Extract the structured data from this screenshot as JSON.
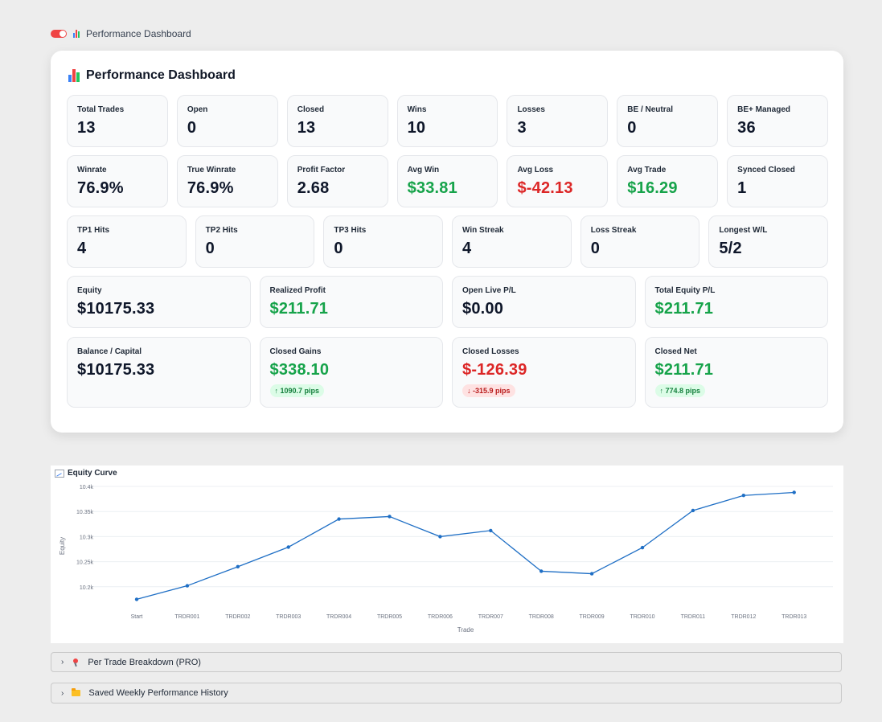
{
  "header": {
    "toggle_label": "Performance Dashboard"
  },
  "panel": {
    "title": "Performance Dashboard"
  },
  "colors": {
    "green": "#16a34a",
    "red": "#dc2626",
    "line": "#1f6fc5"
  },
  "rows": [
    [
      {
        "label": "Total Trades",
        "value": "13",
        "color": ""
      },
      {
        "label": "Open",
        "value": "0",
        "color": ""
      },
      {
        "label": "Closed",
        "value": "13",
        "color": ""
      },
      {
        "label": "Wins",
        "value": "10",
        "color": ""
      },
      {
        "label": "Losses",
        "value": "3",
        "color": ""
      },
      {
        "label": "BE / Neutral",
        "value": "0",
        "color": ""
      },
      {
        "label": "BE+ Managed",
        "value": "36",
        "color": ""
      }
    ],
    [
      {
        "label": "Winrate",
        "value": "76.9%",
        "color": ""
      },
      {
        "label": "True Winrate",
        "value": "76.9%",
        "color": ""
      },
      {
        "label": "Profit Factor",
        "value": "2.68",
        "color": ""
      },
      {
        "label": "Avg Win",
        "value": "$33.81",
        "color": "green"
      },
      {
        "label": "Avg Loss",
        "value": "$-42.13",
        "color": "red"
      },
      {
        "label": "Avg Trade",
        "value": "$16.29",
        "color": "green"
      },
      {
        "label": "Synced Closed",
        "value": "1",
        "color": ""
      }
    ],
    [
      {
        "label": "TP1 Hits",
        "value": "4",
        "color": ""
      },
      {
        "label": "TP2 Hits",
        "value": "0",
        "color": ""
      },
      {
        "label": "TP3 Hits",
        "value": "0",
        "color": ""
      },
      {
        "label": "Win Streak",
        "value": "4",
        "color": ""
      },
      {
        "label": "Loss Streak",
        "value": "0",
        "color": ""
      },
      {
        "label": "Longest W/L",
        "value": "5/2",
        "color": ""
      }
    ],
    [
      {
        "label": "Equity",
        "value": "$10175.33",
        "color": ""
      },
      {
        "label": "Realized Profit",
        "value": "$211.71",
        "color": "green"
      },
      {
        "label": "Open Live P/L",
        "value": "$0.00",
        "color": ""
      },
      {
        "label": "Total Equity P/L",
        "value": "$211.71",
        "color": "green"
      }
    ],
    [
      {
        "label": "Balance / Capital",
        "value": "$10175.33",
        "color": "",
        "pill": "",
        "pill_color": ""
      },
      {
        "label": "Closed Gains",
        "value": "$338.10",
        "color": "green",
        "pill": "↑ 1090.7 pips",
        "pill_color": "green"
      },
      {
        "label": "Closed Losses",
        "value": "$-126.39",
        "color": "red",
        "pill": "↓ -315.9 pips",
        "pill_color": "red"
      },
      {
        "label": "Closed Net",
        "value": "$211.71",
        "color": "green",
        "pill": "↑ 774.8 pips",
        "pill_color": "green"
      }
    ]
  ],
  "chart_data": {
    "type": "line",
    "title": "Equity Curve",
    "xlabel": "Trade",
    "ylabel": "Equity",
    "categories": [
      "Start",
      "TRDR001",
      "TRDR002",
      "TRDR003",
      "TRDR004",
      "TRDR005",
      "TRDR006",
      "TRDR007",
      "TRDR008",
      "TRDR009",
      "TRDR010",
      "TRDR011",
      "TRDR012",
      "TRDR013"
    ],
    "values": [
      10175,
      10202,
      10240,
      10279,
      10335,
      10340,
      10300,
      10312,
      10231,
      10226,
      10278,
      10352,
      10382,
      10388
    ],
    "yticks": [
      10200,
      10250,
      10300,
      10350,
      10400
    ],
    "ytick_labels": [
      "10.2k",
      "10.25k",
      "10.3k",
      "10.35k",
      "10.4k"
    ],
    "ylim": [
      10150,
      10400
    ],
    "grid": true
  },
  "accordions": [
    {
      "label": "Per Trade Breakdown (PRO)",
      "icon": "pin-icon"
    },
    {
      "label": "Saved Weekly Performance History",
      "icon": "folder-icon"
    }
  ]
}
